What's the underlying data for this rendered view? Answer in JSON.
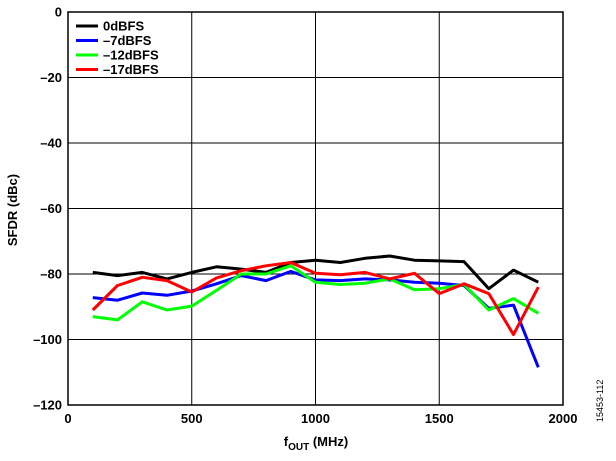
{
  "chart_data": {
    "type": "line",
    "xlabel_main": "f",
    "xlabel_sub": "OUT",
    "xlabel_unit": " (MHz)",
    "ylabel": "SFDR (dBc)",
    "xlim": [
      0,
      2000
    ],
    "ylim": [
      -120,
      0
    ],
    "xticks": [
      0,
      500,
      1000,
      1500,
      2000
    ],
    "xtick_labels": [
      "0",
      "500",
      "1000",
      "1500",
      "2000"
    ],
    "yticks": [
      0,
      -20,
      -40,
      -60,
      -80,
      -100,
      -120
    ],
    "ytick_labels": [
      "0",
      "–20",
      "–40",
      "–60",
      "–80",
      "–100",
      "–120"
    ],
    "grid": true,
    "legend_position": "top-left",
    "x": [
      100,
      200,
      300,
      400,
      500,
      600,
      700,
      800,
      900,
      1000,
      1100,
      1200,
      1300,
      1400,
      1500,
      1600,
      1700,
      1800,
      1900
    ],
    "series": [
      {
        "name": "0dBFS",
        "color": "#000000",
        "values": [
          -79.5,
          -80.5,
          -79.5,
          -81.5,
          -79.5,
          -77.8,
          -78.5,
          -79.5,
          -76.5,
          -75.8,
          -76.5,
          -75.2,
          -74.5,
          -75.8,
          -76.0,
          -76.2,
          -84.5,
          -78.8,
          -82.5
        ]
      },
      {
        "name": "–7dBFS",
        "color": "#0000ff",
        "values": [
          -87.2,
          -88.0,
          -85.8,
          -86.5,
          -85.2,
          -83.0,
          -80.5,
          -82.0,
          -79.2,
          -81.8,
          -82.0,
          -81.5,
          -81.8,
          -82.5,
          -82.8,
          -83.5,
          -90.5,
          -89.5,
          -108.5
        ]
      },
      {
        "name": "–12dBFS",
        "color": "#00ff00",
        "values": [
          -93.0,
          -94.0,
          -88.5,
          -91.0,
          -89.8,
          -85.0,
          -80.0,
          -80.0,
          -77.5,
          -82.5,
          -83.2,
          -82.8,
          -81.5,
          -84.8,
          -84.5,
          -83.2,
          -91.0,
          -87.5,
          -92.0
        ]
      },
      {
        "name": "–17dBFS",
        "color": "#ff0000",
        "values": [
          -91.0,
          -83.5,
          -81.0,
          -82.0,
          -85.5,
          -81.2,
          -79.0,
          -77.5,
          -76.5,
          -79.8,
          -80.2,
          -79.5,
          -81.5,
          -79.8,
          -86.0,
          -83.0,
          -86.0,
          -98.5,
          -84.0
        ]
      }
    ]
  },
  "figure_id": "15453-112"
}
